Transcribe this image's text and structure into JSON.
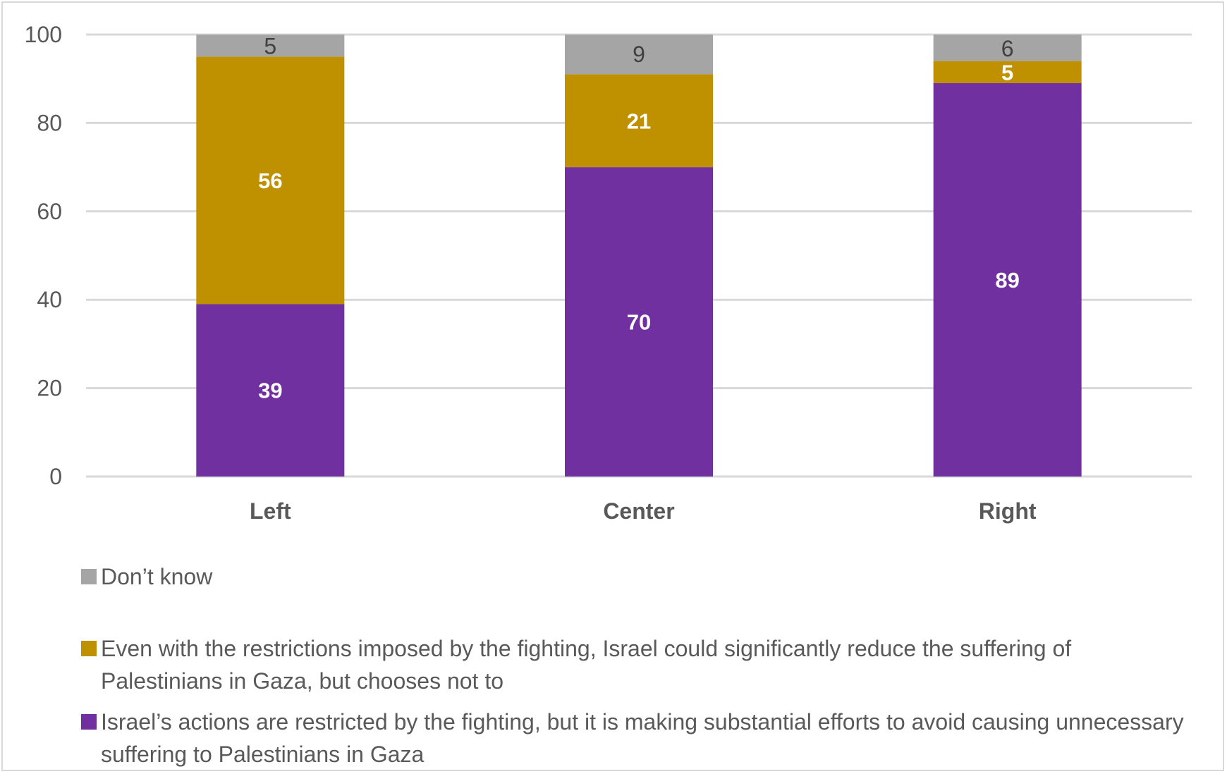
{
  "chart_data": {
    "type": "bar",
    "stacked": true,
    "title": "",
    "xlabel": "",
    "ylabel": "",
    "ylim": [
      0,
      100
    ],
    "yticks": [
      0,
      20,
      40,
      60,
      80,
      100
    ],
    "grid": true,
    "legend_position": "bottom",
    "categories": [
      "Left",
      "Center",
      "Right"
    ],
    "series": [
      {
        "name": "Israel’s actions are restricted by the fighting, but it is making substantial efforts to avoid causing unnecessary suffering to Palestinians in Gaza",
        "values": [
          39,
          70,
          89
        ],
        "color": "#7030A0",
        "label_style": "light"
      },
      {
        "name": "Even with the restrictions imposed by the fighting, Israel could significantly reduce the suffering of Palestinians in Gaza, but chooses not to",
        "values": [
          56,
          21,
          5
        ],
        "color": "#BF9000",
        "label_style": "light"
      },
      {
        "name": "Don’t know",
        "values": [
          5,
          9,
          6
        ],
        "color": "#A5A5A5",
        "label_style": "dark"
      }
    ],
    "legend_order": [
      2,
      1,
      0
    ]
  }
}
